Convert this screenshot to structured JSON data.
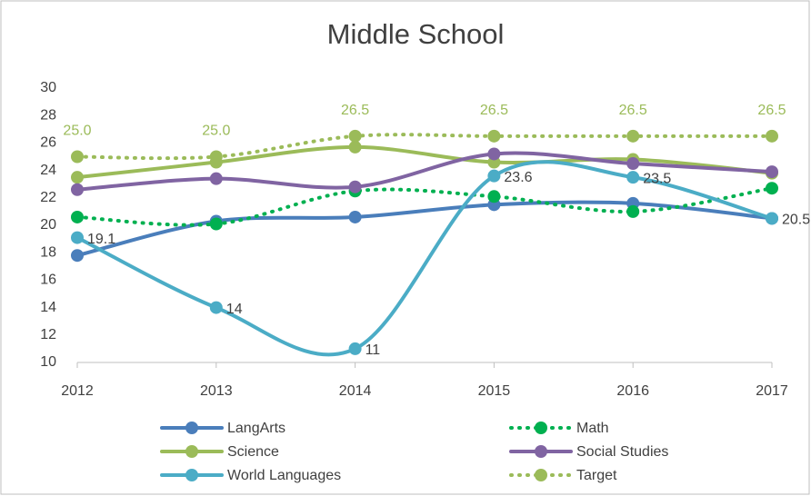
{
  "chart_data": {
    "type": "line",
    "title": "Middle School",
    "categories": [
      "2012",
      "2013",
      "2014",
      "2015",
      "2016",
      "2017"
    ],
    "ylim": [
      10,
      30
    ],
    "yticks": [
      10,
      12,
      14,
      16,
      18,
      20,
      22,
      24,
      26,
      28,
      30
    ],
    "series": [
      {
        "name": "LangArts",
        "color": "#4a7ebb",
        "dash": false,
        "values": [
          17.8,
          20.3,
          20.6,
          21.5,
          21.6,
          20.5
        ]
      },
      {
        "name": "Math",
        "color": "#00b050",
        "dash": true,
        "values": [
          20.6,
          20.1,
          22.5,
          22.1,
          21.0,
          22.7
        ]
      },
      {
        "name": "Science",
        "color": "#9bbb59",
        "dash": false,
        "values": [
          23.5,
          24.6,
          25.7,
          24.6,
          24.8,
          23.8
        ]
      },
      {
        "name": "Social Studies",
        "color": "#8064a2",
        "dash": false,
        "values": [
          22.6,
          23.4,
          22.8,
          25.2,
          24.5,
          23.9
        ]
      },
      {
        "name": "World Languages",
        "color": "#4bacc6",
        "dash": false,
        "values": [
          19.1,
          14,
          11,
          23.6,
          23.5,
          20.5
        ],
        "labels": true
      },
      {
        "name": "Target",
        "color": "#9bbb59",
        "dash": true,
        "values": [
          25.0,
          25.0,
          26.5,
          26.5,
          26.5,
          26.5
        ],
        "value_labels": [
          "25.0",
          "25.0",
          "26.5",
          "26.5",
          "26.5",
          "26.5"
        ],
        "labels": true
      }
    ]
  }
}
